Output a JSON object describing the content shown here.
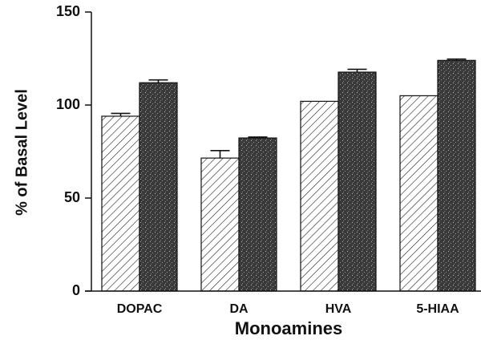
{
  "chart_data": {
    "type": "bar",
    "categories": [
      "DOPAC",
      "DA",
      "HVA",
      "5-HIAA"
    ],
    "series": [
      {
        "color": "#ffffff",
        "fill_pattern": "hatch",
        "values": [
          94,
          71.5,
          102,
          105
        ],
        "errors": [
          1.5,
          4,
          null,
          null
        ]
      },
      {
        "color": "#3a3a3a",
        "fill_pattern": "stipple",
        "values": [
          112,
          82.3,
          117.7,
          124
        ],
        "errors": [
          1.5,
          0.5,
          1.5,
          0.7
        ]
      }
    ],
    "ylim": [
      0,
      150
    ],
    "yticks": [
      0,
      50,
      100,
      150
    ],
    "ylabel": "% of Basal Level",
    "xlabel": "Monoamines"
  }
}
